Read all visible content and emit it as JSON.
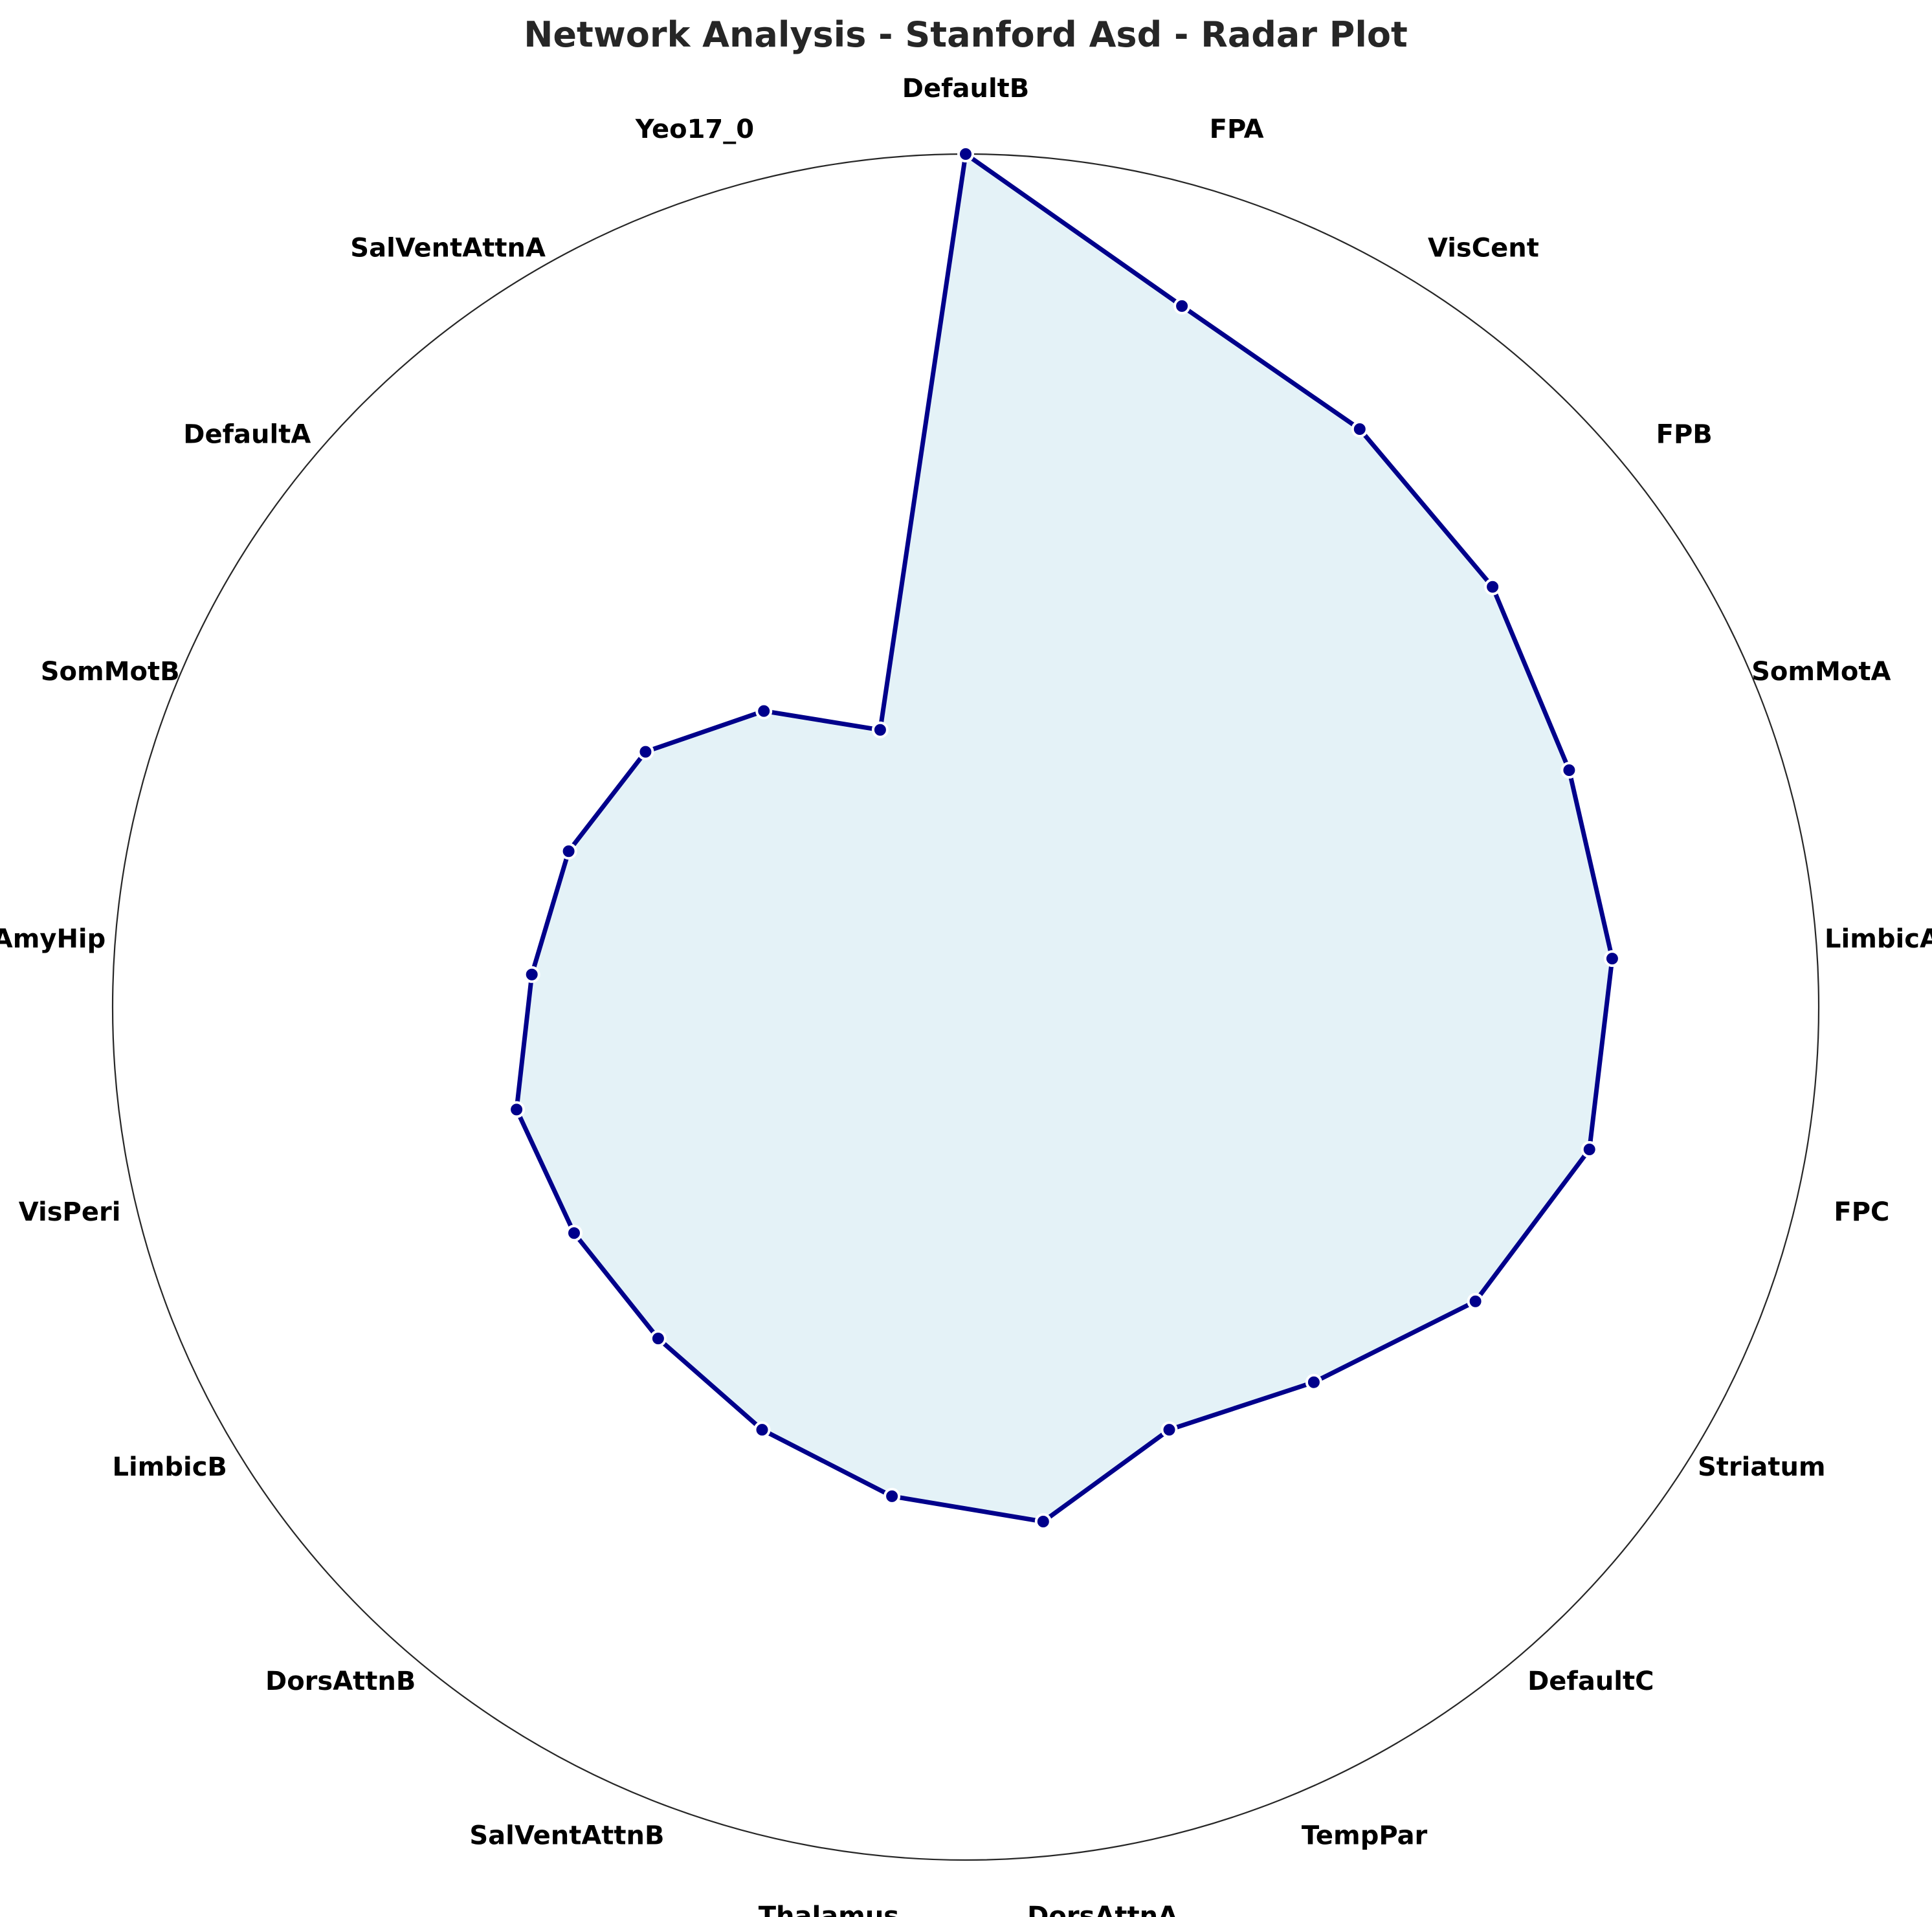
{
  "chart_data": {
    "type": "radar",
    "title": "Network Analysis - Stanford Asd - Radar Plot",
    "categories": [
      "DefaultB",
      "FPA",
      "VisCent",
      "FPB",
      "SomMotA",
      "LimbicA",
      "FPC",
      "Striatum",
      "DefaultC",
      "TempPar",
      "DorsAttnA",
      "Thalamus",
      "SalVentAttnB",
      "DorsAttnB",
      "LimbicB",
      "VisPeri",
      "AmyHip",
      "SomMotB",
      "DefaultA",
      "SalVentAttnA",
      "Yeo17_0"
    ],
    "values": [
      1.0,
      0.86,
      0.82,
      0.79,
      0.76,
      0.76,
      0.75,
      0.69,
      0.6,
      0.55,
      0.61,
      0.58,
      0.55,
      0.53,
      0.53,
      0.54,
      0.51,
      0.5,
      0.48,
      0.42,
      0.34
    ],
    "rlim": [
      0,
      1
    ],
    "grid": false,
    "legend": "none",
    "line_color": "#00008b",
    "fill_color": "#add8e6",
    "outer_ring_color": "#262626"
  }
}
